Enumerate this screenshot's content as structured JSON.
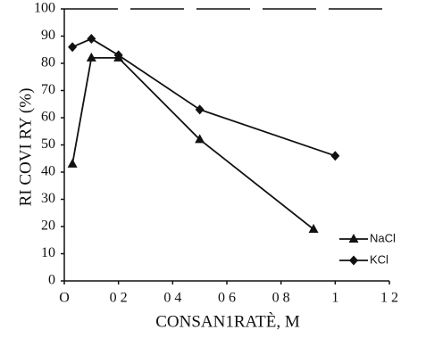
{
  "chart_data": {
    "type": "line",
    "xlabel": "CONSAN1RATÈ, M",
    "ylabel": "RI COVI RY (%)",
    "xlim": [
      0,
      1.2
    ],
    "ylim": [
      0,
      100
    ],
    "xticks": [
      {
        "value": 0,
        "label": "O"
      },
      {
        "value": 0.2,
        "label": "0 2"
      },
      {
        "value": 0.4,
        "label": "0 4"
      },
      {
        "value": 0.6,
        "label": "0 6"
      },
      {
        "value": 0.8,
        "label": "0 8"
      },
      1,
      {
        "value": 1.2,
        "label": "1 2"
      }
    ],
    "yticks": [
      0,
      10,
      20,
      30,
      40,
      50,
      60,
      70,
      80,
      90,
      100
    ],
    "series": [
      {
        "name": "NaCl",
        "color": "#111111",
        "marker": "triangle",
        "x": [
          0.03,
          0.1,
          0.2,
          0.5,
          0.92
        ],
        "values": [
          43,
          82,
          82,
          52,
          19
        ]
      },
      {
        "name": "KCl",
        "color": "#111111",
        "marker": "diamond",
        "x": [
          0.03,
          0.1,
          0.2,
          0.5,
          1.0
        ],
        "values": [
          86,
          89,
          83,
          63,
          46
        ]
      }
    ]
  }
}
